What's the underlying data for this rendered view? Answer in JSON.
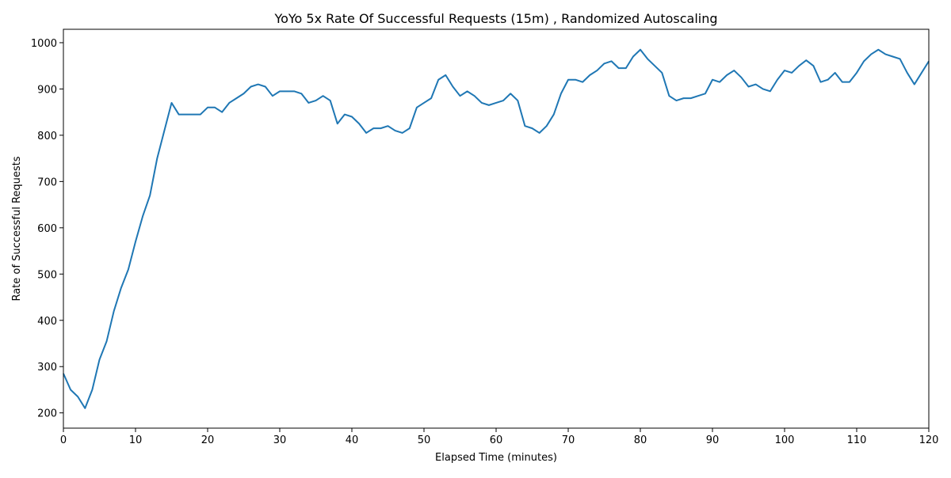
{
  "chart_data": {
    "type": "line",
    "title": "YoYo 5x Rate Of Successful Requests (15m) , Randomized Autoscaling",
    "x_label": "Elapsed Time (minutes)",
    "y_label": "Rate of Successful Requests",
    "x": [
      0,
      1,
      2,
      3,
      4,
      5,
      6,
      7,
      8,
      9,
      10,
      11,
      12,
      13,
      14,
      15,
      16,
      17,
      18,
      19,
      20,
      21,
      22,
      23,
      24,
      25,
      26,
      27,
      28,
      29,
      30,
      31,
      32,
      33,
      34,
      35,
      36,
      37,
      38,
      39,
      40,
      41,
      42,
      43,
      44,
      45,
      46,
      47,
      48,
      49,
      50,
      51,
      52,
      53,
      54,
      55,
      56,
      57,
      58,
      59,
      60,
      61,
      62,
      63,
      64,
      65,
      66,
      67,
      68,
      69,
      70,
      71,
      72,
      73,
      74,
      75,
      76,
      77,
      78,
      79,
      80,
      81,
      82,
      83,
      84,
      85,
      86,
      87,
      88,
      89,
      90,
      91,
      92,
      93,
      94,
      95,
      96,
      97,
      98,
      99,
      100,
      101,
      102,
      103,
      104,
      105,
      106,
      107,
      108,
      109,
      110,
      111,
      112,
      113,
      114,
      115,
      116,
      117,
      118,
      119,
      120
    ],
    "series": [
      {
        "name": "Rate of Successful Requests",
        "color": "#1f77b4",
        "values": [
          285,
          250,
          235,
          210,
          250,
          315,
          355,
          420,
          470,
          510,
          570,
          625,
          670,
          750,
          810,
          870,
          845,
          845,
          845,
          845,
          860,
          860,
          850,
          870,
          880,
          890,
          905,
          910,
          905,
          885,
          895,
          895,
          895,
          890,
          870,
          875,
          885,
          875,
          825,
          845,
          840,
          825,
          805,
          815,
          815,
          820,
          810,
          805,
          815,
          860,
          870,
          880,
          920,
          930,
          905,
          885,
          895,
          885,
          870,
          865,
          870,
          875,
          890,
          875,
          820,
          815,
          805,
          820,
          845,
          890,
          920,
          920,
          915,
          930,
          940,
          955,
          960,
          945,
          945,
          970,
          985,
          965,
          950,
          935,
          885,
          875,
          880,
          880,
          885,
          890,
          920,
          915,
          930,
          940,
          925,
          905,
          910,
          900,
          895,
          920,
          940,
          935,
          950,
          962,
          950,
          915,
          920,
          935,
          915,
          915,
          935,
          960,
          975,
          985,
          975,
          970,
          965,
          935,
          910,
          935,
          960
        ]
      }
    ],
    "xlim": [
      0,
      120
    ],
    "xticks": [
      0,
      10,
      20,
      30,
      40,
      50,
      60,
      70,
      80,
      90,
      100,
      110,
      120
    ],
    "ylim": [
      167,
      1029
    ],
    "yticks": [
      200,
      300,
      400,
      500,
      600,
      700,
      800,
      900,
      1000
    ]
  }
}
